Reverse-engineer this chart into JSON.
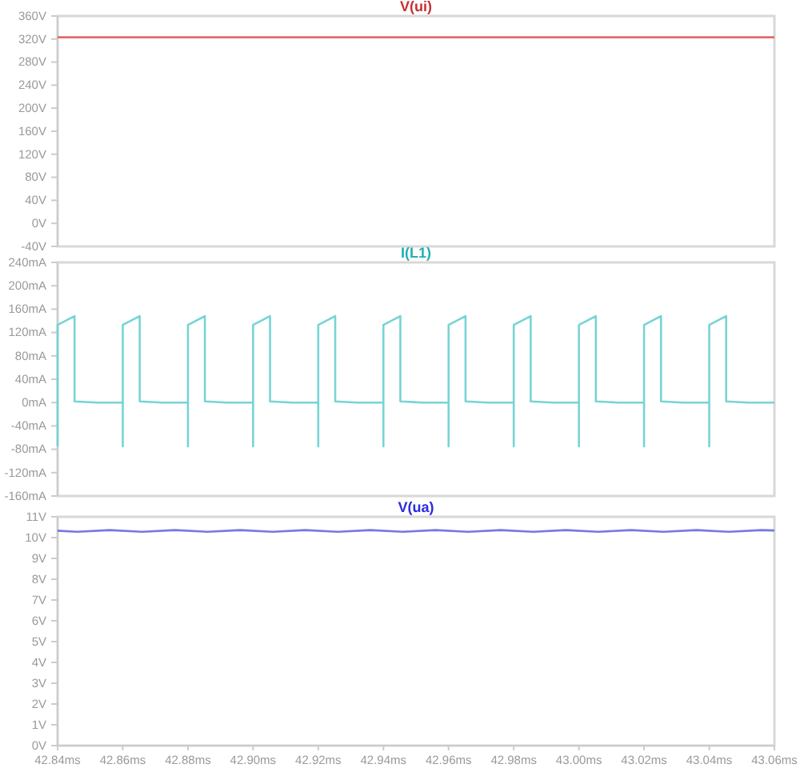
{
  "chart_data": [
    {
      "type": "line",
      "tick_labels": "y",
      "legend": "top",
      "xlim": [
        42.84,
        43.06
      ],
      "ylim": [
        -40,
        360
      ],
      "yticks": [
        {
          "value": -40,
          "label": "-40V"
        },
        {
          "value": 0,
          "label": "0V"
        },
        {
          "value": 40,
          "label": "40V"
        },
        {
          "value": 80,
          "label": "80V"
        },
        {
          "value": 120,
          "label": "120V"
        },
        {
          "value": 160,
          "label": "160V"
        },
        {
          "value": 200,
          "label": "200V"
        },
        {
          "value": 240,
          "label": "240V"
        },
        {
          "value": 280,
          "label": "280V"
        },
        {
          "value": 320,
          "label": "320V"
        },
        {
          "value": 360,
          "label": "360V"
        }
      ],
      "x": [
        42.84,
        43.06
      ],
      "series": [
        {
          "name": "V(ui)",
          "color": "#e06a6a",
          "values": [
            323,
            323
          ]
        }
      ]
    },
    {
      "type": "line",
      "tick_labels": "y",
      "legend": "top",
      "xlim": [
        42.84,
        43.06
      ],
      "ylim": [
        -160,
        240
      ],
      "yticks": [
        {
          "value": -160,
          "label": "-160mA"
        },
        {
          "value": -120,
          "label": "-120mA"
        },
        {
          "value": -80,
          "label": "-80mA"
        },
        {
          "value": -40,
          "label": "-40mA"
        },
        {
          "value": 0,
          "label": "0mA"
        },
        {
          "value": 40,
          "label": "40mA"
        },
        {
          "value": 80,
          "label": "80mA"
        },
        {
          "value": 120,
          "label": "120mA"
        },
        {
          "value": 160,
          "label": "160mA"
        },
        {
          "value": 200,
          "label": "200mA"
        },
        {
          "value": 240,
          "label": "240mA"
        }
      ],
      "x": [
        42.84,
        42.84,
        42.8452,
        42.8452,
        42.852,
        42.86,
        42.86,
        42.86,
        42.8652,
        42.8652,
        42.872,
        42.88,
        42.88,
        42.88,
        42.8852,
        42.8852,
        42.892,
        42.9,
        42.9,
        42.9,
        42.9052,
        42.9052,
        42.912,
        42.92,
        42.92,
        42.92,
        42.9252,
        42.9252,
        42.932,
        42.94,
        42.94,
        42.94,
        42.9452,
        42.9452,
        42.952,
        42.96,
        42.96,
        42.96,
        42.9652,
        42.9652,
        42.972,
        42.98,
        42.98,
        42.98,
        42.9852,
        42.9852,
        42.992,
        43.0,
        43.0,
        43.0,
        43.0052,
        43.0052,
        43.012,
        43.02,
        43.02,
        43.02,
        43.0252,
        43.0252,
        43.032,
        43.04,
        43.04,
        43.04,
        43.0452,
        43.0452,
        43.052,
        43.06
      ],
      "series": [
        {
          "name": "I(L1)",
          "color": "#77d4d4",
          "values": [
            -75,
            133,
            148,
            2,
            0,
            0,
            -75,
            133,
            148,
            2,
            0,
            0,
            -75,
            133,
            148,
            2,
            0,
            0,
            -75,
            133,
            148,
            2,
            0,
            0,
            -75,
            133,
            148,
            2,
            0,
            0,
            -75,
            133,
            148,
            2,
            0,
            0,
            -75,
            133,
            148,
            2,
            0,
            0,
            -75,
            133,
            148,
            2,
            0,
            0,
            -75,
            133,
            148,
            2,
            0,
            0,
            -75,
            133,
            148,
            2,
            0,
            0,
            -75,
            133,
            148,
            2,
            0,
            0
          ]
        }
      ]
    },
    {
      "type": "line",
      "legend": "top",
      "xlim": [
        42.84,
        43.06
      ],
      "ylim": [
        0,
        11
      ],
      "xticks": [
        {
          "value": 42.84,
          "label": "42.84ms"
        },
        {
          "value": 42.86,
          "label": "42.86ms"
        },
        {
          "value": 42.88,
          "label": "42.88ms"
        },
        {
          "value": 42.9,
          "label": "42.90ms"
        },
        {
          "value": 42.92,
          "label": "42.92ms"
        },
        {
          "value": 42.94,
          "label": "42.94ms"
        },
        {
          "value": 42.96,
          "label": "42.96ms"
        },
        {
          "value": 42.98,
          "label": "42.98ms"
        },
        {
          "value": 43.0,
          "label": "43.00ms"
        },
        {
          "value": 43.02,
          "label": "43.02ms"
        },
        {
          "value": 43.04,
          "label": "43.04ms"
        },
        {
          "value": 43.06,
          "label": "43.06ms"
        }
      ],
      "yticks": [
        {
          "value": 0,
          "label": "0V"
        },
        {
          "value": 1,
          "label": "1V"
        },
        {
          "value": 2,
          "label": "2V"
        },
        {
          "value": 3,
          "label": "3V"
        },
        {
          "value": 4,
          "label": "4V"
        },
        {
          "value": 5,
          "label": "5V"
        },
        {
          "value": 6,
          "label": "6V"
        },
        {
          "value": 7,
          "label": "7V"
        },
        {
          "value": 8,
          "label": "8V"
        },
        {
          "value": 9,
          "label": "9V"
        },
        {
          "value": 10,
          "label": "10V"
        },
        {
          "value": 11,
          "label": "11V"
        }
      ],
      "x": [
        42.84,
        42.846,
        42.856,
        42.866,
        42.876,
        42.886,
        42.896,
        42.906,
        42.916,
        42.926,
        42.936,
        42.946,
        42.956,
        42.966,
        42.976,
        42.986,
        42.996,
        43.006,
        43.016,
        43.026,
        43.036,
        43.046,
        43.056,
        43.06
      ],
      "series": [
        {
          "name": "V(ua)",
          "color": "#7777e6",
          "values": [
            10.33,
            10.28,
            10.36,
            10.28,
            10.36,
            10.28,
            10.36,
            10.28,
            10.36,
            10.28,
            10.36,
            10.28,
            10.36,
            10.28,
            10.36,
            10.28,
            10.36,
            10.28,
            10.36,
            10.28,
            10.36,
            10.28,
            10.36,
            10.34
          ]
        }
      ]
    }
  ]
}
